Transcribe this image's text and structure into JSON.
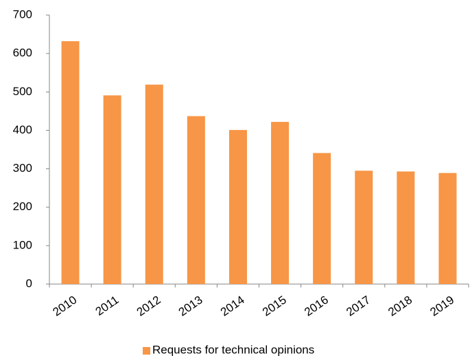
{
  "chart_data": {
    "type": "bar",
    "categories": [
      "2010",
      "2011",
      "2012",
      "2013",
      "2014",
      "2015",
      "2016",
      "2017",
      "2018",
      "2019"
    ],
    "series": [
      {
        "name": "Requests for technical opinions",
        "color": "#f79646",
        "values": [
          632,
          491,
          519,
          437,
          401,
          422,
          341,
          295,
          293,
          289
        ]
      }
    ],
    "ylim": [
      0,
      700
    ],
    "yticks": [
      0,
      100,
      200,
      300,
      400,
      500,
      600,
      700
    ],
    "grid": false,
    "legend": "bottom"
  }
}
